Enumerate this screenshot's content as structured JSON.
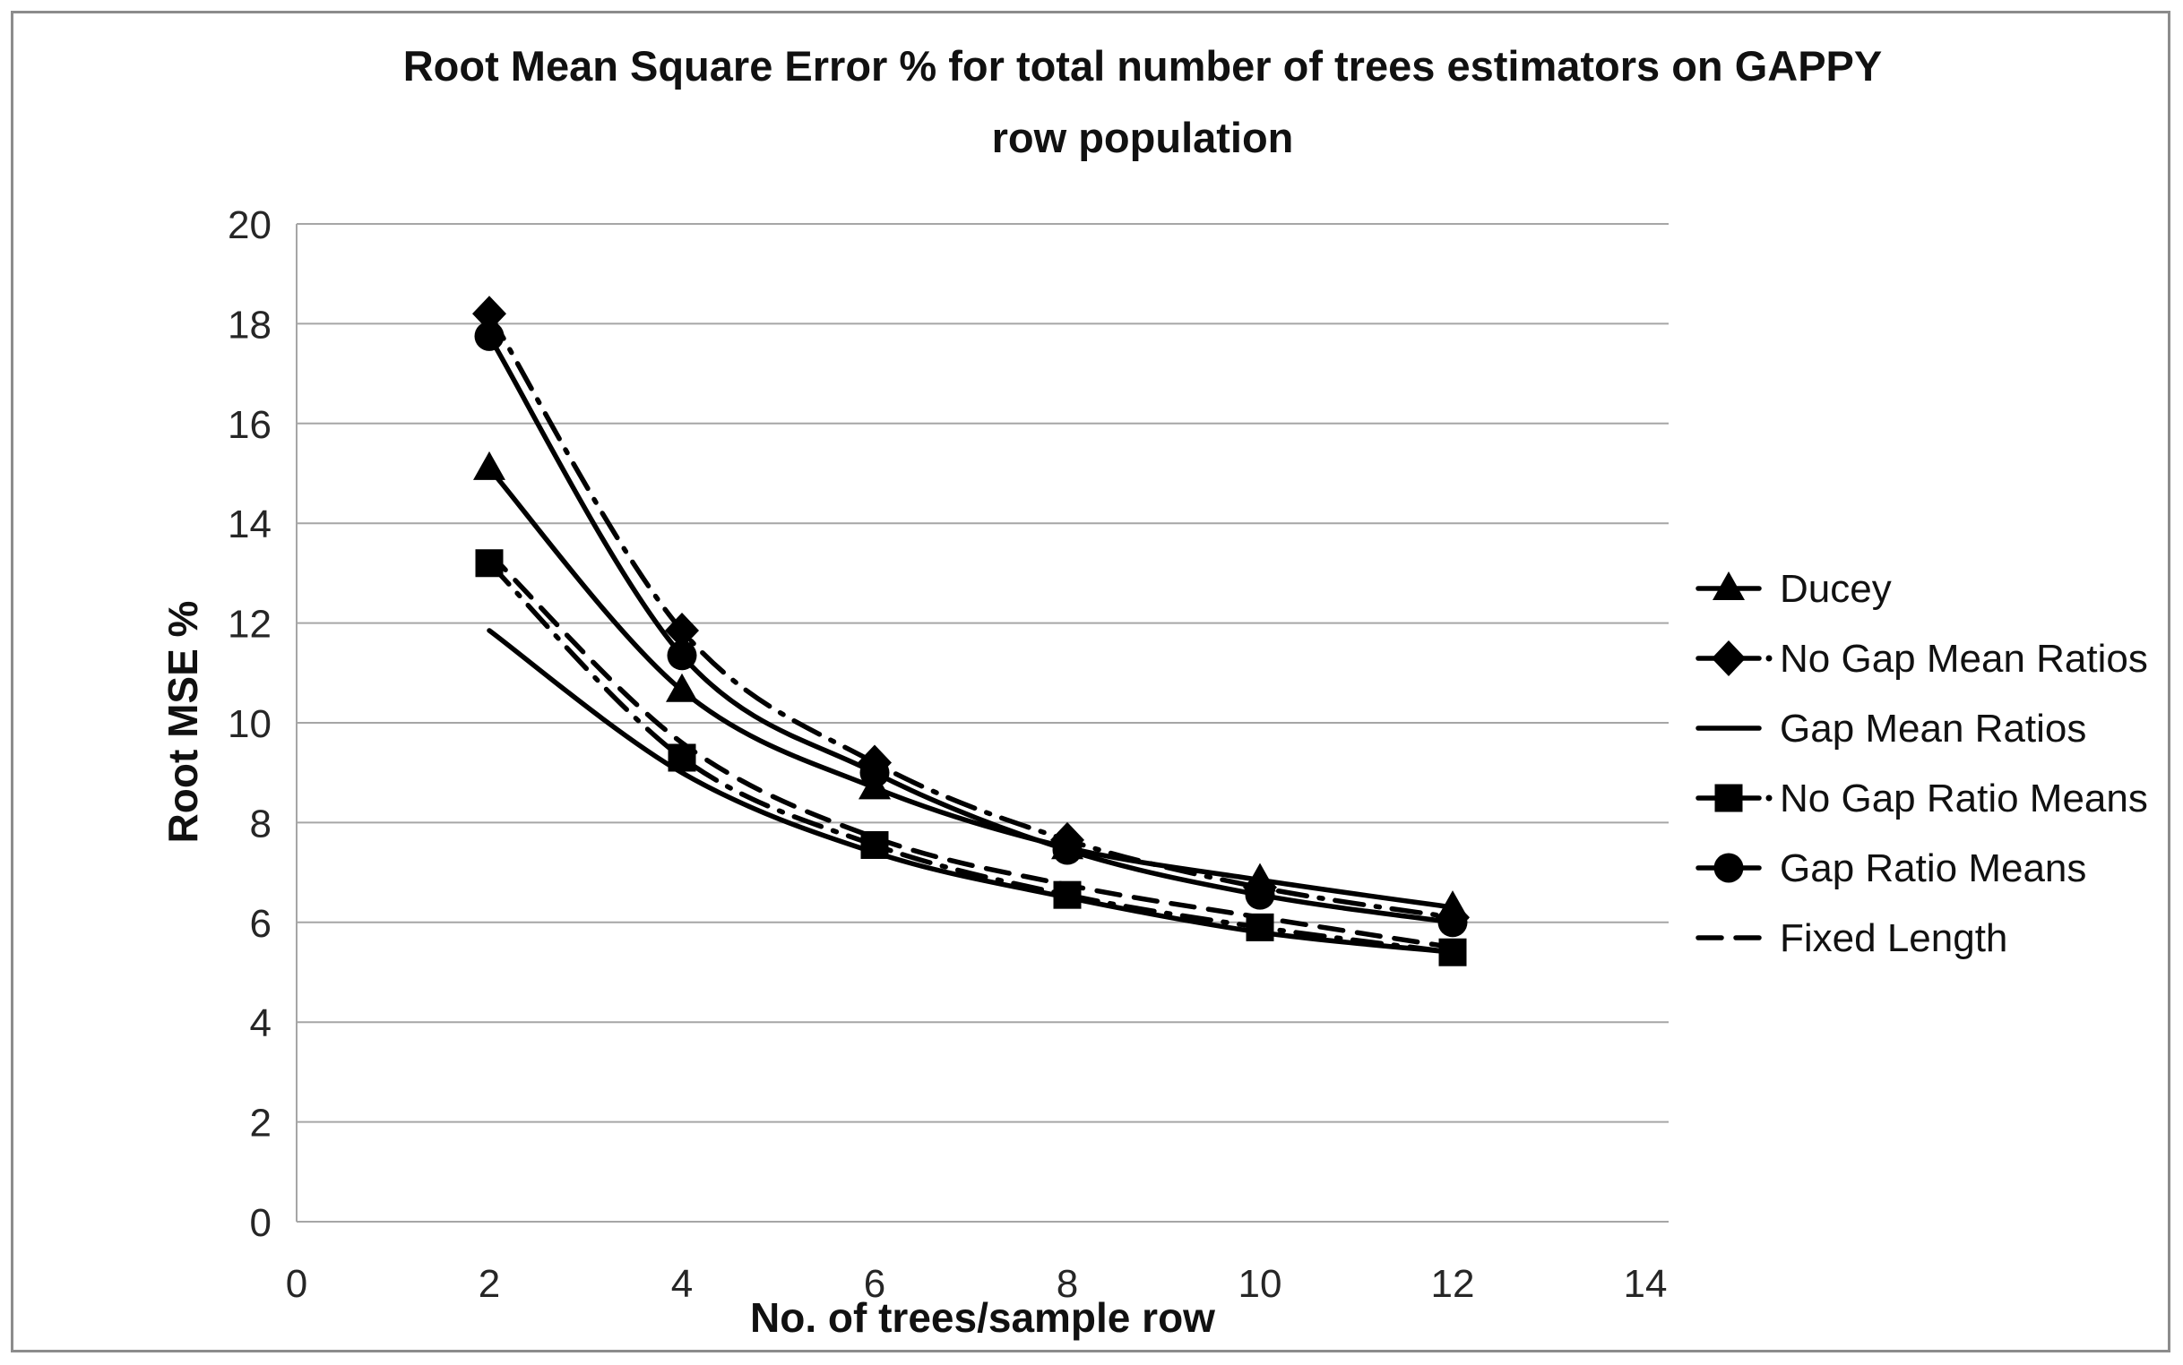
{
  "title": {
    "line1": "Root Mean Square Error % for total number of trees estimators on GAPPY",
    "line2": "row population"
  },
  "colors": {
    "series_line": "#000000",
    "grid": "#a6a6a6",
    "background": "#ffffff",
    "frame_border": "#8c8c8c",
    "tick_text": "#262626"
  },
  "chart_data": {
    "type": "line",
    "title": "Root Mean Square Error % for total number of trees estimators on GAPPY row population",
    "xlabel": "No. of trees/sample row",
    "ylabel": "Root MSE %",
    "xlim": [
      0,
      14
    ],
    "ylim": [
      0,
      20
    ],
    "xticks": [
      0,
      2,
      4,
      6,
      8,
      10,
      12,
      14
    ],
    "yticks": [
      0,
      2,
      4,
      6,
      8,
      10,
      12,
      14,
      16,
      18,
      20
    ],
    "grid": true,
    "legend_position": "right",
    "x": [
      2,
      4,
      6,
      8,
      10,
      12
    ],
    "series": [
      {
        "name": "Ducey",
        "marker": "triangle",
        "line_style": "solid",
        "values": [
          15.1,
          10.65,
          8.7,
          7.5,
          6.85,
          6.3
        ]
      },
      {
        "name": "No Gap Mean Ratios",
        "marker": "diamond",
        "line_style": "dash-dot",
        "values": [
          18.2,
          11.85,
          9.2,
          7.65,
          6.7,
          6.1
        ]
      },
      {
        "name": "Gap Mean Ratios",
        "marker": "none",
        "line_style": "solid",
        "values": [
          11.85,
          9.0,
          7.4,
          6.5,
          5.8,
          5.4
        ]
      },
      {
        "name": "No Gap Ratio Means",
        "marker": "square",
        "line_style": "dash-dot",
        "values": [
          13.2,
          9.3,
          7.55,
          6.55,
          5.9,
          5.4
        ]
      },
      {
        "name": "Gap Ratio Means",
        "marker": "circle",
        "line_style": "solid",
        "values": [
          17.75,
          11.35,
          9.0,
          7.45,
          6.55,
          6.0
        ]
      },
      {
        "name": "Fixed Length",
        "marker": "none",
        "line_style": "dashed",
        "values": [
          13.4,
          9.6,
          7.7,
          6.75,
          6.1,
          5.5
        ]
      }
    ]
  }
}
